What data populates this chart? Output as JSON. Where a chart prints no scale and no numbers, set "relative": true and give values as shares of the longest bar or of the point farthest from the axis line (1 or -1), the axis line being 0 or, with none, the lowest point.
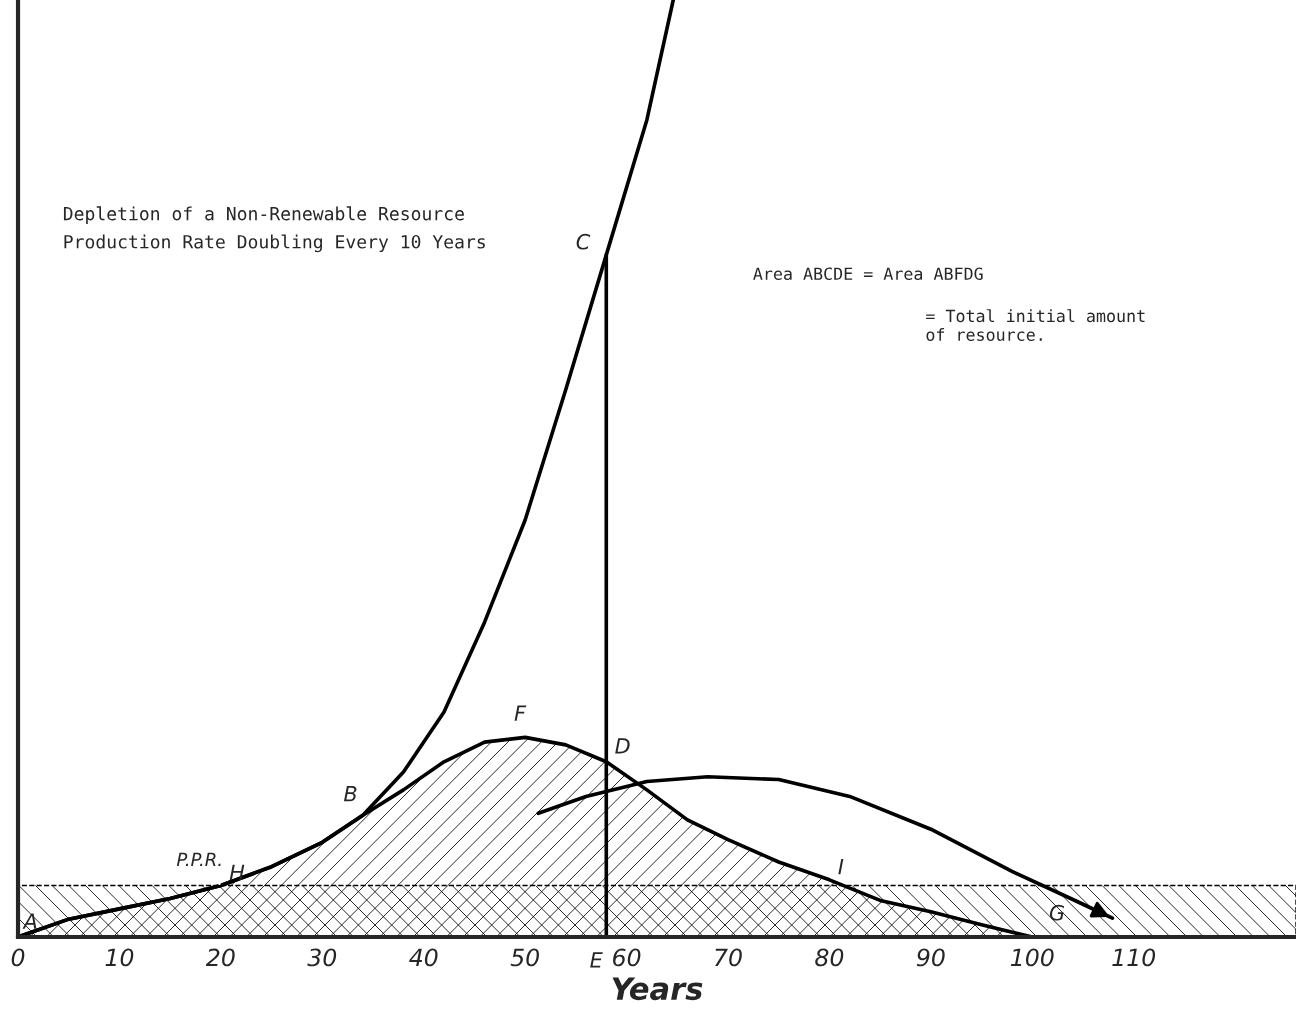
{
  "chart_data": {
    "type": "line",
    "relative": true,
    "title": "Depletion of a Non-Renewable Resource",
    "subtitle": "Production Rate Doubling Every 10 Years",
    "xlabel": "Years",
    "xlim": [
      0,
      126
    ],
    "xticks": [
      0,
      10,
      20,
      30,
      40,
      50,
      60,
      70,
      80,
      90,
      100,
      110
    ],
    "series": [
      {
        "color": "#000000",
        "x": [
          0,
          5,
          10,
          15,
          20,
          25,
          30,
          34,
          38,
          42,
          46,
          50,
          54,
          58,
          62,
          64.6
        ],
        "values": [
          0,
          0.019,
          0.03,
          0.041,
          0.055,
          0.075,
          0.101,
          0.13,
          0.176,
          0.24,
          0.336,
          0.445,
          0.584,
          0.728,
          0.872,
          1
        ]
      },
      {
        "type": "area",
        "color": "#000000",
        "x": [
          0,
          5,
          10,
          15,
          20,
          25,
          30,
          34,
          38,
          42,
          46,
          50,
          54,
          58,
          62,
          66,
          70,
          75,
          80,
          85,
          90,
          95,
          100
        ],
        "values": [
          0,
          0.019,
          0.03,
          0.041,
          0.055,
          0.075,
          0.101,
          0.13,
          0.157,
          0.187,
          0.208,
          0.213,
          0.205,
          0.187,
          0.157,
          0.125,
          0.104,
          0.08,
          0.061,
          0.039,
          0.027,
          0.013,
          0
        ]
      },
      {
        "color": "#000000",
        "x": [
          58,
          58
        ],
        "values": [
          0,
          0.728
        ]
      },
      {
        "color": "#000000",
        "x": [
          51.3,
          56,
          62,
          68,
          75,
          82,
          90,
          98,
          104,
          107.9
        ],
        "values": [
          0.132,
          0.15,
          0.166,
          0.171,
          0.168,
          0.15,
          0.115,
          0.07,
          0.04,
          0.02
        ]
      }
    ],
    "bands": [
      {
        "axis": "y",
        "from": 0,
        "to": 0.055,
        "label": null,
        "color": "#000000"
      }
    ],
    "annotations": [
      {
        "text": "A",
        "x": 0,
        "y": 0
      },
      {
        "text": "B",
        "x": 34,
        "y": 0.13
      },
      {
        "text": "C",
        "x": 58,
        "y": 0.728
      },
      {
        "text": "D",
        "x": 58,
        "y": 0.187
      },
      {
        "text": "E",
        "x": 58,
        "y": 0
      },
      {
        "text": "F",
        "x": 50,
        "y": 0.213
      },
      {
        "text": "G",
        "x": 100,
        "y": 0
      },
      {
        "text": "H",
        "x": 20,
        "y": 0.055
      },
      {
        "text": "I",
        "x": 80,
        "y": 0.061
      },
      {
        "text": "P.P.R.",
        "x": 20,
        "y": 0.055
      },
      "Area ABCDE = Area ABFDG",
      "= Total initial amount\nof resource."
    ],
    "grid": false,
    "legend": false
  }
}
